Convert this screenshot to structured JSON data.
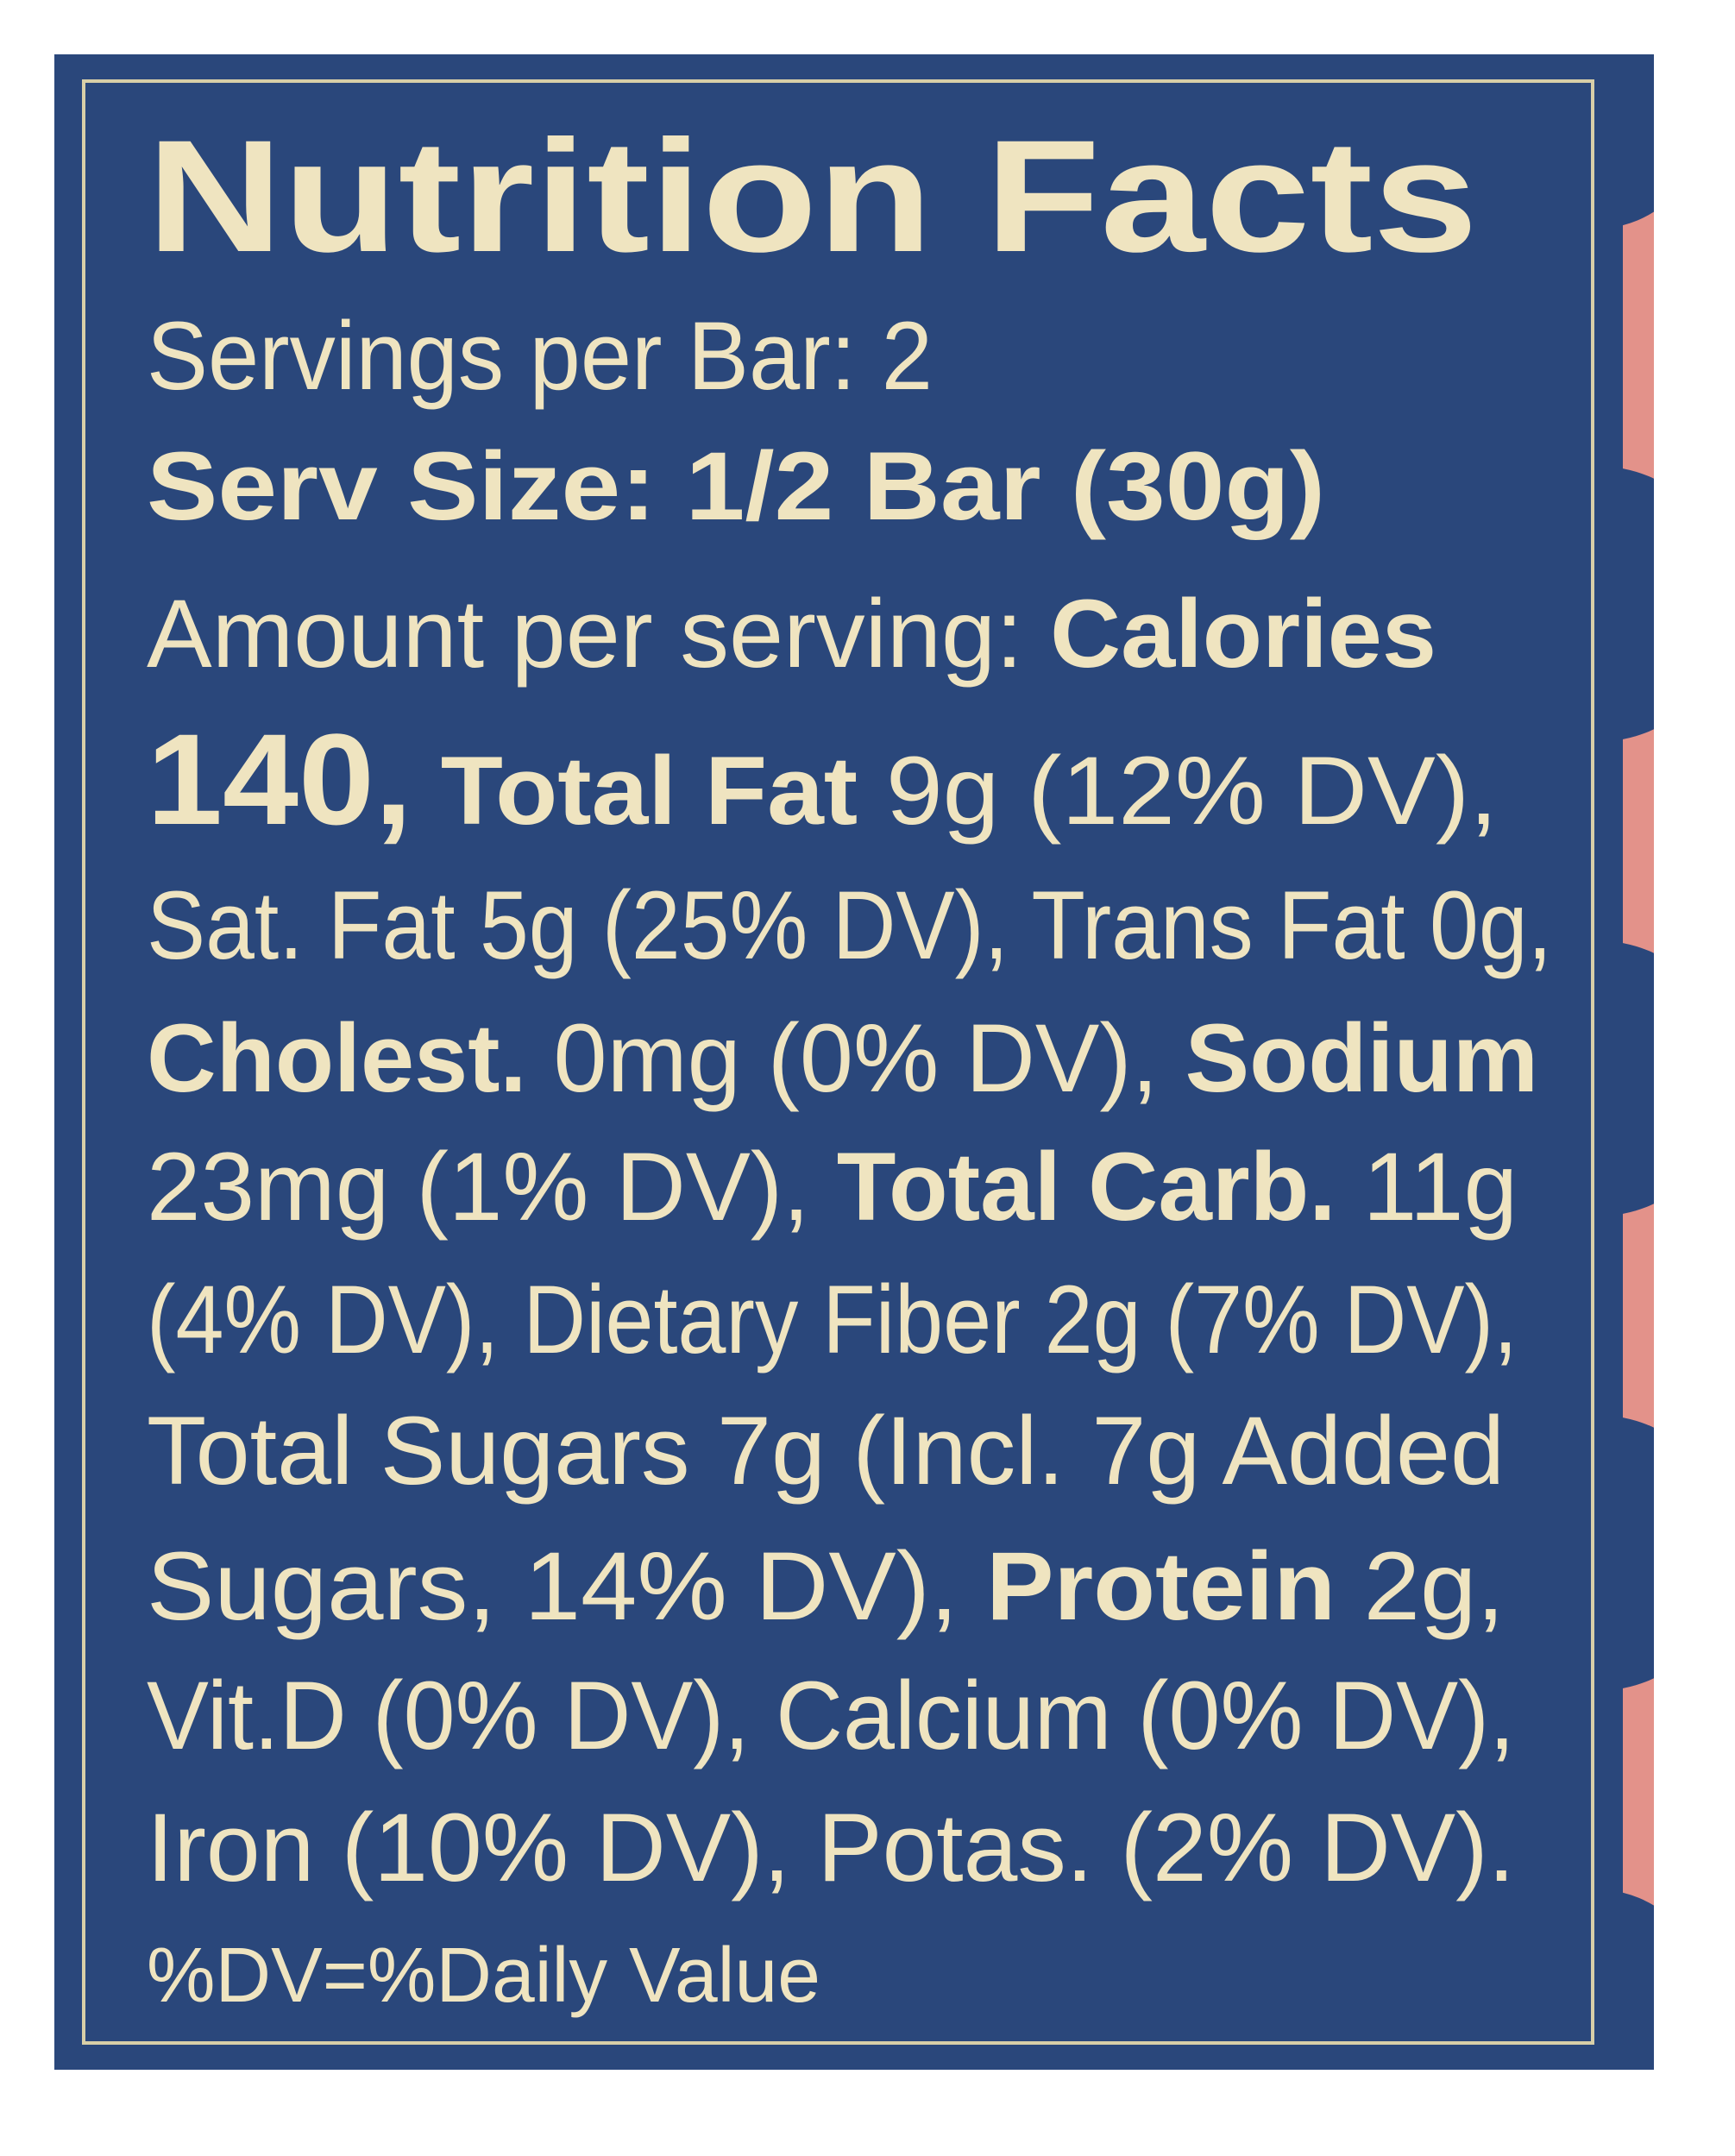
{
  "title": "Nutrition Facts",
  "lines": [
    {
      "segments": [
        {
          "text": "Servings per Bar: 2",
          "style": "regular"
        }
      ]
    },
    {
      "segments": [
        {
          "text": "Serv Size: 1/2 Bar (30g)",
          "style": "bold"
        }
      ]
    },
    {
      "segments": [
        {
          "text": "Amount per serving: ",
          "style": "regular"
        },
        {
          "text": "Calories",
          "style": "bold"
        }
      ]
    },
    {
      "segments": [
        {
          "text": "140,",
          "style": "large"
        },
        {
          "text": " Total Fat",
          "style": "bold"
        },
        {
          "text": " 9g (12% DV),",
          "style": "regular"
        }
      ]
    },
    {
      "segments": [
        {
          "text": "Sat. Fat 5g (25% DV), Trans Fat 0g,",
          "style": "regular"
        }
      ]
    },
    {
      "segments": [
        {
          "text": "Cholest.",
          "style": "bold"
        },
        {
          "text": " 0mg (0% DV), ",
          "style": "regular"
        },
        {
          "text": "Sodium",
          "style": "bold"
        }
      ]
    },
    {
      "segments": [
        {
          "text": "23mg (1% DV), ",
          "style": "regular"
        },
        {
          "text": "Total Carb.",
          "style": "bold"
        },
        {
          "text": " 11g",
          "style": "regular"
        }
      ]
    },
    {
      "segments": [
        {
          "text": "(4% DV), Dietary Fiber 2g (7% DV),",
          "style": "regular"
        }
      ]
    },
    {
      "segments": [
        {
          "text": "Total Sugars 7g (Incl. 7g Added",
          "style": "regular"
        }
      ]
    },
    {
      "segments": [
        {
          "text": "Sugars, 14% DV), ",
          "style": "regular"
        },
        {
          "text": "Protein",
          "style": "bold"
        },
        {
          "text": " 2g,",
          "style": "regular"
        }
      ]
    },
    {
      "segments": [
        {
          "text": "Vit.D (0% DV), Calcium (0% DV),",
          "style": "regular"
        }
      ]
    },
    {
      "segments": [
        {
          "text": "Iron (10% DV), Potas. (2% DV).",
          "style": "regular"
        }
      ]
    }
  ],
  "footnote": "%DV=%Daily Value"
}
